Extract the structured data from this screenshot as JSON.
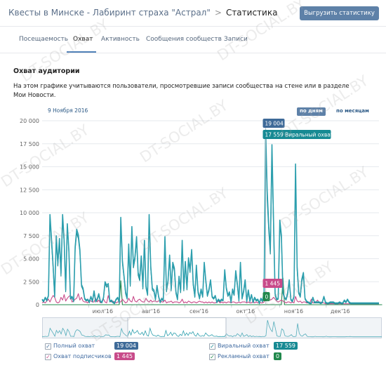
{
  "header": {
    "breadcrumb_community": "Квесты в Минске - Лабиринт страха \"Астрал\"",
    "breadcrumb_separator": ">",
    "breadcrumb_current": "Статистика",
    "export_button": "Выгрузить статистику"
  },
  "tabs": [
    {
      "label": "Посещаемость"
    },
    {
      "label": "Охват",
      "active": true
    },
    {
      "label": "Активность"
    },
    {
      "label": "Сообщения сообществ"
    },
    {
      "label": "Записи"
    }
  ],
  "section": {
    "title": "Охват аудитории",
    "description": "На этом графике учитываются пользователи, просмотревшие записи сообщества на стене или в разделе Мои Новости."
  },
  "chart_controls": {
    "date": "9 Ноября 2016",
    "by_days": "по дням",
    "by_months": "по месяцам"
  },
  "tooltip": {
    "total": "19 004",
    "viral": "17 559 Виральный охват",
    "subscribers": "1 445",
    "ads": "0"
  },
  "legend": [
    {
      "label": "Полный охват",
      "value": "19 004",
      "color": "#3e6a98",
      "checked": true
    },
    {
      "label": "Виральный охват",
      "value": "17 559",
      "color": "#178a93",
      "checked": true
    },
    {
      "label": "Охват подписчиков",
      "value": "1 445",
      "color": "#c84b8a",
      "checked": true
    },
    {
      "label": "Рекламный охват",
      "value": "0",
      "color": "#21884c",
      "checked": true
    }
  ],
  "watermark": "DT-SOCIAL.BY",
  "chart_data": {
    "type": "line",
    "x_start": "2016-06-01",
    "x_end": "2017-01-04",
    "ylim": [
      0,
      20000
    ],
    "y_ticks": [
      "0",
      "2 500",
      "5 000",
      "7 500",
      "10 000",
      "12 500",
      "15 000",
      "17 500",
      "20 000"
    ],
    "x_ticks": [
      "июл'16",
      "авг'16",
      "сен'16",
      "окт'16",
      "ноя'16",
      "дек'16"
    ],
    "grid": true,
    "series": [
      {
        "name": "Полный охват",
        "color": "#2d9fae",
        "values": [
          600,
          400,
          800,
          500,
          1000,
          9800,
          7000,
          4200,
          900,
          7500,
          4500,
          7200,
          3400,
          9800,
          7000,
          1600,
          8800,
          6000,
          700,
          900,
          400,
          6300,
          8200,
          7600,
          6000,
          2200,
          1800,
          700,
          500,
          600,
          300,
          900,
          400,
          1500,
          400,
          600,
          1200,
          400,
          300,
          800,
          2500,
          2100,
          2300,
          400,
          500,
          300,
          200,
          600,
          800,
          300,
          9500,
          4800,
          3200,
          1400,
          700,
          6600,
          2200,
          8500,
          4300,
          5200,
          7400,
          3500,
          2900,
          5300,
          1900,
          7000,
          2000,
          1100,
          9800,
          4200,
          1800,
          1600,
          600,
          2100,
          900,
          300,
          700,
          500,
          7400,
          1600,
          2600,
          5400,
          1700,
          4600,
          4000,
          1400,
          600,
          3100,
          1500,
          7000,
          1700,
          4700,
          1800,
          5100,
          3800,
          6000,
          2300,
          900,
          4300,
          1500,
          700,
          1700,
          900,
          4600,
          2600,
          1000,
          1700,
          2700,
          900,
          700,
          1000,
          300,
          600,
          400,
          600,
          500,
          3800,
          1900,
          1000,
          1400,
          300,
          1700,
          1100,
          3700,
          2300,
          500,
          4600,
          700,
          1500,
          2700,
          400,
          1600,
          400,
          1100,
          300,
          800,
          500,
          600,
          200,
          700,
          400,
          1400,
          19004,
          12400,
          8500,
          6000,
          17400,
          9300,
          1200,
          600,
          700,
          9200,
          7600,
          1400,
          800,
          600,
          1300,
          2700,
          600,
          400,
          900,
          15300,
          4100,
          1400,
          900,
          2800,
          3500,
          700,
          400,
          300,
          200,
          200,
          800,
          300,
          300,
          300,
          300,
          200,
          300,
          900,
          300,
          200,
          200,
          300,
          300,
          300,
          200,
          200,
          200,
          300,
          200,
          200,
          500,
          300,
          600,
          300,
          200,
          200,
          200,
          200,
          200,
          200,
          200,
          200,
          200,
          200,
          200,
          200,
          200,
          200,
          200,
          200,
          200,
          200,
          200
        ]
      },
      {
        "name": "Виральный охват",
        "color": "#178a93",
        "values": [
          500,
          300,
          700,
          400,
          900,
          9400,
          6600,
          3900,
          800,
          7100,
          4200,
          6800,
          3100,
          9400,
          6600,
          1400,
          8400,
          5700,
          600,
          800,
          300,
          6000,
          7800,
          7200,
          5700,
          2000,
          1600,
          600,
          400,
          500,
          200,
          800,
          300,
          1300,
          300,
          500,
          1000,
          300,
          200,
          700,
          2300,
          1900,
          2100,
          300,
          400,
          200,
          100,
          500,
          700,
          200,
          9100,
          4500,
          3000,
          1200,
          600,
          6200,
          2000,
          8100,
          4000,
          4900,
          7000,
          3200,
          2600,
          5000,
          1700,
          6600,
          1800,
          1000,
          9300,
          3900,
          1600,
          1400,
          500,
          1900,
          800,
          200,
          600,
          400,
          7000,
          1400,
          2400,
          5100,
          1500,
          4300,
          3700,
          1200,
          500,
          2800,
          1300,
          6600,
          1500,
          4400,
          1600,
          4800,
          3500,
          5700,
          2100,
          800,
          4000,
          1300,
          600,
          1500,
          800,
          4300,
          2400,
          900,
          1500,
          2500,
          800,
          600,
          900,
          200,
          500,
          300,
          500,
          400,
          3500,
          1700,
          900,
          1200,
          200,
          1500,
          1000,
          3400,
          2100,
          400,
          4300,
          600,
          1300,
          2500,
          300,
          1400,
          300,
          1000,
          200,
          700,
          400,
          500,
          100,
          600,
          300,
          1200,
          17559,
          11400,
          7900,
          5500,
          16200,
          8600,
          1000,
          500,
          600,
          8600,
          7100,
          1200,
          700,
          500,
          1100,
          2500,
          500,
          300,
          800,
          14400,
          3700,
          1200,
          800,
          2500,
          3200,
          600,
          300,
          200,
          100,
          100,
          700,
          200,
          200,
          200,
          200,
          100,
          200,
          800,
          200,
          100,
          100,
          200,
          200,
          200,
          100,
          100,
          100,
          200,
          100,
          100,
          400,
          200,
          500,
          200,
          100,
          100,
          100,
          100,
          100,
          100,
          100,
          100,
          100,
          100,
          100,
          100,
          100,
          100,
          100,
          100,
          100,
          100,
          100
        ]
      },
      {
        "name": "Охват подписчиков",
        "color": "#c84b8a",
        "values": [
          200,
          300,
          200,
          400,
          600,
          300,
          700,
          1000,
          800,
          300,
          200,
          300,
          800,
          500,
          1100,
          400,
          700,
          900,
          1000,
          300,
          400,
          600,
          700,
          1200,
          500,
          800,
          400,
          300,
          300,
          200,
          500,
          400,
          300,
          300,
          700,
          300,
          500,
          200,
          300,
          600,
          300,
          200,
          1000,
          400,
          300,
          400,
          300,
          200,
          300,
          300,
          300,
          600,
          400,
          200,
          300,
          700,
          400,
          300,
          900,
          400,
          300,
          500,
          600,
          400,
          300,
          300,
          700,
          400,
          300,
          500,
          300,
          400,
          400,
          300,
          400,
          500,
          300,
          300,
          500,
          200,
          300,
          300,
          400,
          200,
          300,
          300,
          300,
          200,
          300,
          600,
          200,
          300,
          200,
          400,
          300,
          200,
          300,
          300,
          200,
          300,
          400,
          300,
          300,
          200,
          300,
          200,
          300,
          200,
          300,
          200,
          200,
          300,
          400,
          200,
          300,
          200,
          300,
          200,
          300,
          300,
          200,
          300,
          300,
          200,
          200,
          300,
          200,
          300,
          300,
          300,
          200,
          300,
          200,
          200,
          400,
          200,
          300,
          200,
          300,
          200,
          200,
          300,
          1445,
          1200,
          600,
          500,
          600,
          800,
          600,
          400,
          300,
          400,
          500,
          400,
          300,
          200,
          300,
          300,
          200,
          300,
          200,
          900,
          400,
          300,
          400,
          200,
          300,
          300,
          200,
          200,
          200,
          600,
          200,
          200,
          300,
          500,
          200,
          300,
          200,
          200,
          100,
          100,
          100,
          100,
          100,
          100,
          100,
          100,
          100,
          100,
          100,
          100,
          100,
          100,
          100,
          100,
          100,
          100,
          100,
          100,
          100,
          100,
          100,
          100,
          100,
          100,
          100,
          100,
          100,
          100,
          100,
          100,
          100,
          100,
          100
        ]
      },
      {
        "name": "Рекламный охват",
        "color": "#21884c",
        "values": [
          0,
          0,
          0,
          0,
          0,
          0,
          0,
          0,
          0,
          0,
          0,
          0,
          0,
          0,
          0,
          0,
          0,
          0,
          0,
          0,
          0,
          0,
          0,
          0,
          0,
          0,
          0,
          0,
          0,
          0,
          0,
          0,
          0,
          0,
          0,
          0,
          0,
          0,
          0,
          0,
          0,
          0,
          0,
          0,
          0,
          0,
          0,
          0,
          0,
          0,
          2600,
          0,
          0,
          0,
          0,
          0,
          0,
          0,
          0,
          0,
          0,
          0,
          0,
          0,
          0,
          0,
          0,
          0,
          0,
          0,
          0,
          0,
          0,
          0,
          0,
          0,
          0,
          0,
          0,
          0,
          0,
          0,
          0,
          0,
          0,
          0,
          0,
          0,
          0,
          0,
          0,
          0,
          0,
          0,
          0,
          0,
          0,
          0,
          0,
          0,
          0,
          0,
          0,
          0,
          0,
          0,
          0,
          0,
          0,
          0,
          0,
          0,
          0,
          0,
          0,
          0,
          0,
          0,
          0,
          0,
          0,
          0,
          0,
          0,
          0,
          0,
          0,
          0,
          0,
          0,
          0,
          0,
          0,
          0,
          0,
          0,
          0,
          0,
          0,
          0,
          0,
          0,
          0,
          0,
          0,
          0,
          0,
          0,
          0,
          0,
          0,
          0,
          0,
          2900,
          0,
          0,
          0,
          0,
          0,
          0,
          0,
          0,
          0,
          0,
          0,
          0,
          0,
          0,
          0,
          0,
          0,
          0,
          0,
          0,
          0,
          0,
          0,
          0,
          0,
          0,
          0,
          0,
          0,
          0,
          0,
          0,
          0,
          0,
          0,
          0,
          0,
          0,
          0,
          0,
          0,
          0,
          0,
          0,
          0,
          0,
          0,
          0,
          0,
          0,
          0,
          0,
          0,
          0,
          0,
          0,
          0,
          0,
          0,
          0,
          0,
          0,
          0
        ]
      }
    ]
  }
}
